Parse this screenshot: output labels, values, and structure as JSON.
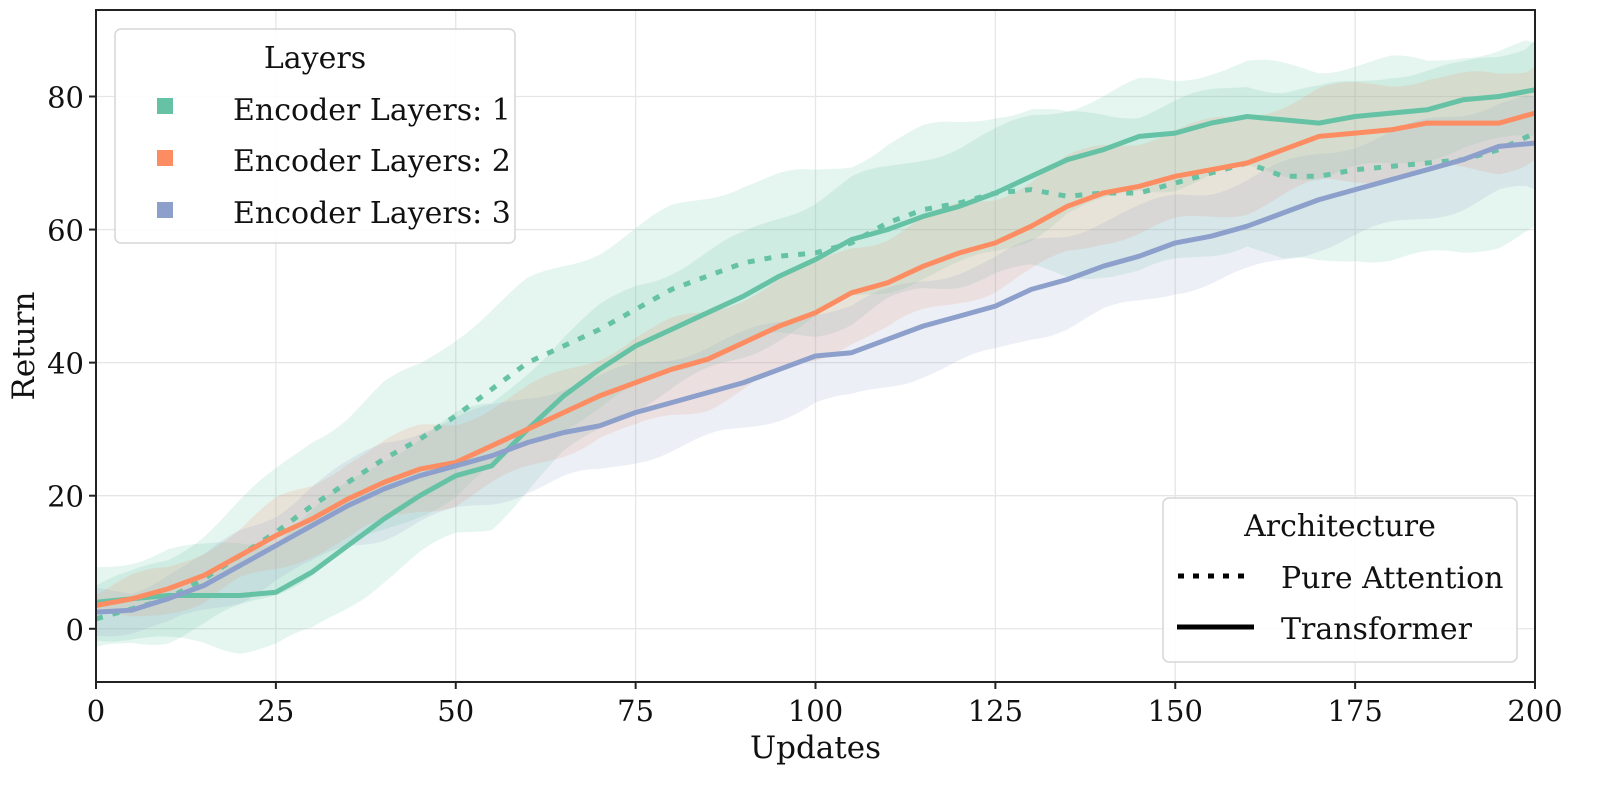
{
  "chart_data": {
    "type": "line",
    "title": "",
    "xlabel": "Updates",
    "ylabel": "Return",
    "xlim": [
      0,
      200
    ],
    "ylim": [
      -8,
      93
    ],
    "xticks": [
      0,
      25,
      50,
      75,
      100,
      125,
      150,
      175,
      200
    ],
    "xtick_labels": [
      "0",
      "25",
      "50",
      "75",
      "100",
      "125",
      "150",
      "175",
      "200"
    ],
    "yticks": [
      0,
      20,
      40,
      60,
      80
    ],
    "ytick_labels": [
      "0",
      "20",
      "40",
      "60",
      "80"
    ],
    "grid": true,
    "x": [
      0,
      5,
      10,
      15,
      20,
      25,
      30,
      35,
      40,
      45,
      50,
      55,
      60,
      65,
      70,
      75,
      80,
      85,
      90,
      95,
      100,
      105,
      110,
      115,
      120,
      125,
      130,
      135,
      140,
      145,
      150,
      155,
      160,
      165,
      170,
      175,
      180,
      185,
      190,
      195,
      200
    ],
    "series": [
      {
        "name": "Encoder Layers: 1 / Pure Attention",
        "layers": 1,
        "architecture": "Pure Attention",
        "color": "#66c2a5",
        "style": "dotted",
        "values": [
          1.5,
          3,
          4.5,
          7.5,
          11,
          14.5,
          18.5,
          22,
          25.5,
          28.5,
          32,
          36,
          40,
          42.5,
          45,
          48,
          51,
          53,
          55,
          56,
          56.5,
          58,
          61,
          63,
          64,
          65.5,
          66,
          65,
          65.5,
          65.5,
          67,
          68.5,
          70,
          68,
          68,
          69,
          69.5,
          70,
          70.5,
          72,
          74.5
        ],
        "band_halfwidth": [
          5,
          5,
          6,
          7,
          8,
          9,
          10,
          10,
          11,
          11,
          12,
          12,
          12,
          12,
          12,
          12,
          12,
          12,
          12,
          12,
          12,
          12,
          12,
          12,
          12,
          12,
          12,
          12,
          12,
          12,
          12,
          12,
          12,
          13,
          13,
          13,
          14,
          14,
          14,
          14,
          14
        ]
      },
      {
        "name": "Encoder Layers: 1 / Transformer",
        "layers": 1,
        "architecture": "Transformer",
        "color": "#66c2a5",
        "style": "solid",
        "values": [
          4,
          4.5,
          5,
          5,
          5,
          5.5,
          8.5,
          12.5,
          16.5,
          20,
          23,
          24.5,
          30,
          35,
          39,
          42.5,
          45,
          47.5,
          50,
          53,
          55.5,
          58.5,
          60,
          62,
          63.5,
          65.5,
          68,
          70.5,
          72,
          74,
          74.5,
          76,
          77,
          76.5,
          76,
          77,
          77.5,
          78,
          79.5,
          80,
          81
        ],
        "band_halfwidth": [
          5,
          6,
          7,
          7,
          8,
          8,
          9,
          9,
          9,
          9,
          9,
          9,
          9,
          9,
          9,
          9,
          9,
          9,
          9,
          9,
          9,
          9,
          9,
          9,
          9,
          9,
          9,
          8,
          8,
          8,
          8,
          8,
          8,
          8,
          8,
          8,
          8,
          7,
          7,
          7,
          7
        ]
      },
      {
        "name": "Encoder Layers: 2 / Transformer",
        "layers": 2,
        "architecture": "Transformer",
        "color": "#fc8d62",
        "style": "solid",
        "values": [
          3.5,
          4.5,
          6,
          8,
          11,
          14,
          16.5,
          19.5,
          22,
          24,
          25,
          27.5,
          30,
          32.5,
          35,
          37,
          39,
          40.5,
          43,
          45.5,
          47.5,
          50.5,
          52,
          54.5,
          56.5,
          58,
          60.5,
          63.5,
          65.5,
          66.5,
          68,
          69,
          70,
          72,
          74,
          74.5,
          75,
          76,
          76,
          76,
          77.5
        ],
        "band_halfwidth": [
          2,
          3,
          3,
          4,
          4,
          5,
          5,
          6,
          6,
          6,
          6,
          6,
          6,
          6,
          6,
          7,
          7,
          7,
          7,
          7,
          7,
          7,
          7,
          7,
          7,
          7,
          7,
          7,
          7,
          7,
          7,
          7,
          7,
          7,
          7,
          7,
          7,
          7,
          7,
          7,
          7
        ]
      },
      {
        "name": "Encoder Layers: 3 / Transformer",
        "layers": 3,
        "architecture": "Transformer",
        "color": "#8da0cb",
        "style": "solid",
        "values": [
          2.5,
          2.8,
          4.5,
          6.5,
          9.5,
          12.5,
          15.5,
          18.5,
          21,
          23,
          24.5,
          26,
          28,
          29.5,
          30.5,
          32.5,
          34,
          35.5,
          37,
          39,
          41,
          41.5,
          43.5,
          45.5,
          47,
          48.5,
          51,
          52.5,
          54.5,
          56,
          58,
          59,
          60.5,
          62.5,
          64.5,
          66,
          67.5,
          69,
          70.5,
          72.5,
          73
        ],
        "band_halfwidth": [
          3,
          3,
          4,
          4,
          5,
          5,
          6,
          6,
          7,
          7,
          7,
          7,
          7,
          7,
          7,
          7,
          7,
          7,
          7,
          7,
          7,
          7,
          7,
          7,
          7,
          7,
          7,
          7,
          7,
          7,
          7,
          7,
          7,
          7,
          7,
          7,
          7,
          7,
          7,
          7,
          7
        ]
      }
    ],
    "legends": [
      {
        "title": "Layers",
        "placement": "top-left",
        "entries": [
          {
            "label": "Encoder Layers: 1",
            "color": "#66c2a5",
            "marker": "square"
          },
          {
            "label": "Encoder Layers: 2",
            "color": "#fc8d62",
            "marker": "square"
          },
          {
            "label": "Encoder Layers: 3",
            "color": "#8da0cb",
            "marker": "square"
          }
        ]
      },
      {
        "title": "Architecture",
        "placement": "bottom-right",
        "entries": [
          {
            "label": "Pure Attention",
            "style": "dotted",
            "color": "#000000"
          },
          {
            "label": "Transformer",
            "style": "solid",
            "color": "#000000"
          }
        ]
      }
    ]
  }
}
